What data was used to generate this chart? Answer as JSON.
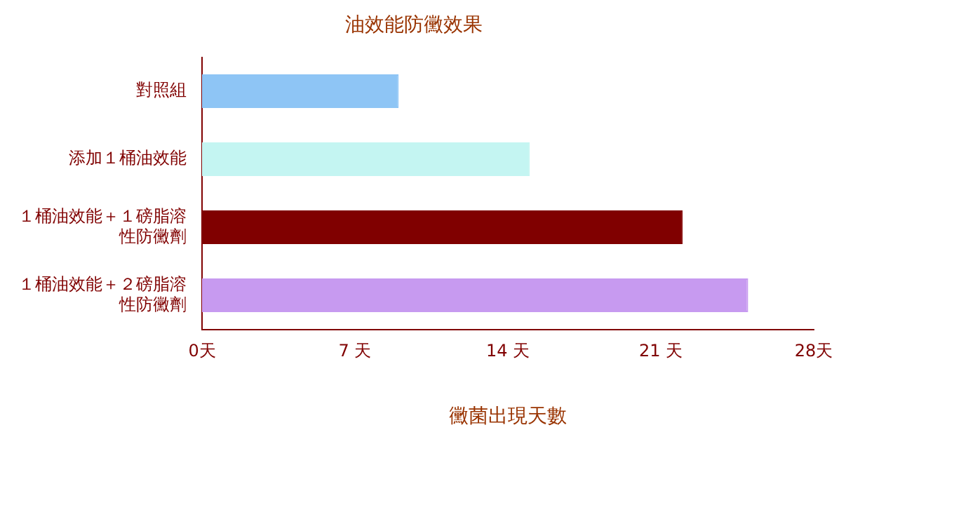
{
  "chart_data": {
    "type": "bar",
    "orientation": "horizontal",
    "title": "油效能防黴效果",
    "xlabel": "黴菌出現天數",
    "categories": [
      "對照組",
      "添加１桶油效能",
      "１桶油效能＋１磅脂溶性防黴劑",
      "１桶油效能＋２磅脂溶性防黴劑"
    ],
    "values": [
      9,
      15,
      22,
      25
    ],
    "colors": [
      "#8ec5f5",
      "#c4f5f2",
      "#800000",
      "#c79af0"
    ],
    "xlim": [
      0,
      28
    ],
    "xticks": [
      {
        "value": 0,
        "label": "0天"
      },
      {
        "value": 7,
        "label": "7 天"
      },
      {
        "value": 14,
        "label": "14 天"
      },
      {
        "value": 21,
        "label": "21 天"
      },
      {
        "value": 28,
        "label": "28天"
      }
    ],
    "grid": false,
    "legend": false
  }
}
